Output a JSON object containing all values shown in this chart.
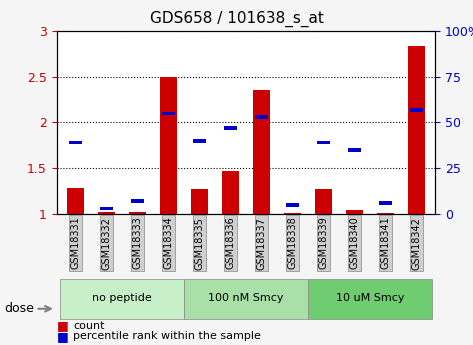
{
  "title": "GDS658 / 101638_s_at",
  "samples": [
    "GSM18331",
    "GSM18332",
    "GSM18333",
    "GSM18334",
    "GSM18335",
    "GSM18336",
    "GSM18337",
    "GSM18338",
    "GSM18339",
    "GSM18340",
    "GSM18341",
    "GSM18342"
  ],
  "red_values": [
    1.28,
    1.02,
    1.02,
    2.5,
    1.27,
    1.47,
    2.36,
    1.01,
    1.27,
    1.04,
    1.01,
    2.84
  ],
  "blue_values": [
    0.39,
    0.03,
    0.07,
    0.55,
    0.4,
    0.47,
    0.53,
    0.05,
    0.39,
    0.35,
    0.06,
    0.57
  ],
  "groups": [
    {
      "label": "no peptide",
      "start": 0,
      "end": 4,
      "color": "#c8e6c9"
    },
    {
      "label": "100 nM Smcy",
      "start": 4,
      "end": 8,
      "color": "#a5d6a7"
    },
    {
      "label": "10 uM Smcy",
      "start": 8,
      "end": 12,
      "color": "#66bb6a"
    }
  ],
  "ylim_left": [
    1.0,
    3.0
  ],
  "ylim_right": [
    0.0,
    100.0
  ],
  "yticks_left": [
    1.0,
    1.5,
    2.0,
    2.5,
    3.0
  ],
  "yticks_right": [
    0,
    25,
    50,
    75,
    100
  ],
  "ytick_labels_right": [
    "0",
    "25",
    "50",
    "75",
    "100%"
  ],
  "red_color": "#cc0000",
  "blue_color": "#0000cc",
  "bg_color": "#f0f0f0",
  "plot_bg": "#ffffff",
  "legend_count": "count",
  "legend_percentile": "percentile rank within the sample",
  "dose_label": "dose",
  "bar_width": 0.35
}
